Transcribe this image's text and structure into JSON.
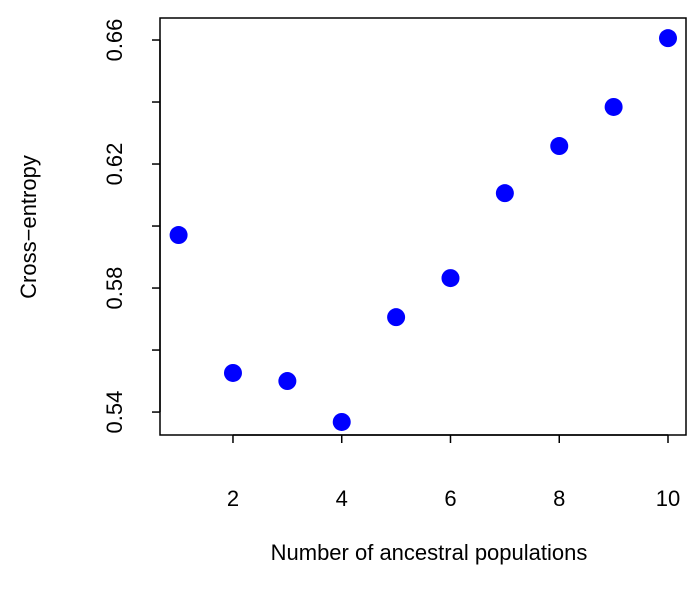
{
  "chart_data": {
    "type": "scatter",
    "xlabel": "Number of ancestral populations",
    "ylabel": "Cross−entropy",
    "x": [
      1,
      2,
      3,
      4,
      5,
      6,
      7,
      8,
      9,
      10
    ],
    "values": [
      0.5971,
      0.5526,
      0.55,
      0.5368,
      0.5706,
      0.5832,
      0.6106,
      0.6258,
      0.6384,
      0.6606
    ],
    "color": "#0000ff",
    "xlim": [
      0.658,
      10.331
    ],
    "ylim": [
      0.5326,
      0.6671
    ],
    "xticks": [
      2,
      4,
      6,
      8,
      10
    ],
    "yticks": [
      0.54,
      {
        "value": 0.56,
        "label": null
      },
      0.58,
      {
        "value": 0.6,
        "label": null
      },
      0.62,
      {
        "value": 0.64,
        "label": null
      },
      0.66
    ]
  }
}
